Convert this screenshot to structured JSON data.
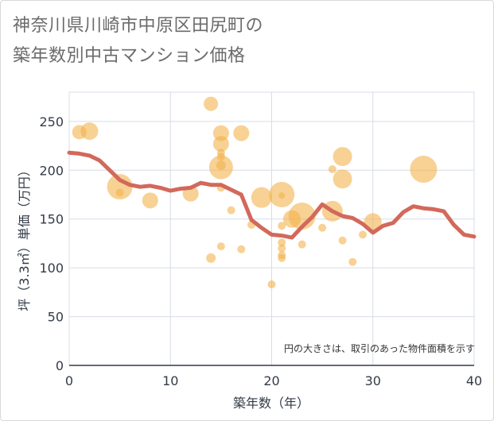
{
  "title_line1": "神奈川県川崎市中原区田尻町の",
  "title_line2": "築年数別中古マンション価格",
  "chart_data": {
    "type": "scatter",
    "xlabel": "築年数（年）",
    "ylabel": "坪（3.3㎡）単価（万円）",
    "xlim": [
      0,
      40
    ],
    "ylim": [
      0,
      280
    ],
    "xticks": [
      0,
      10,
      20,
      30,
      40
    ],
    "yticks": [
      0,
      50,
      100,
      150,
      200,
      250
    ],
    "grid": true,
    "note": "円の大きさは、取引のあった物件面積を示す",
    "colors": {
      "bubble": "#f3b34d",
      "line": "#d2695a",
      "grid": "#d7dde5",
      "axis": "#333b47"
    },
    "scatter_points": [
      {
        "x": 1,
        "y": 239,
        "s": 9
      },
      {
        "x": 2,
        "y": 240,
        "s": 11
      },
      {
        "x": 5,
        "y": 183,
        "s": 16
      },
      {
        "x": 5,
        "y": 177,
        "s": 5
      },
      {
        "x": 8,
        "y": 169,
        "s": 10
      },
      {
        "x": 12,
        "y": 176,
        "s": 10
      },
      {
        "x": 14,
        "y": 268,
        "s": 9
      },
      {
        "x": 14,
        "y": 110,
        "s": 6
      },
      {
        "x": 15,
        "y": 238,
        "s": 10
      },
      {
        "x": 15,
        "y": 227,
        "s": 10
      },
      {
        "x": 15,
        "y": 218,
        "s": 5
      },
      {
        "x": 15,
        "y": 214,
        "s": 5
      },
      {
        "x": 15,
        "y": 205,
        "s": 6
      },
      {
        "x": 15,
        "y": 203,
        "s": 15
      },
      {
        "x": 15,
        "y": 182,
        "s": 5
      },
      {
        "x": 15,
        "y": 122,
        "s": 5
      },
      {
        "x": 16,
        "y": 159,
        "s": 5
      },
      {
        "x": 17,
        "y": 238,
        "s": 10
      },
      {
        "x": 17,
        "y": 119,
        "s": 5
      },
      {
        "x": 18,
        "y": 144,
        "s": 5
      },
      {
        "x": 19,
        "y": 172,
        "s": 13
      },
      {
        "x": 20,
        "y": 83,
        "s": 5
      },
      {
        "x": 21,
        "y": 175,
        "s": 16
      },
      {
        "x": 21,
        "y": 174,
        "s": 4
      },
      {
        "x": 21,
        "y": 143,
        "s": 5
      },
      {
        "x": 21,
        "y": 126,
        "s": 5
      },
      {
        "x": 21,
        "y": 120,
        "s": 5
      },
      {
        "x": 21,
        "y": 113,
        "s": 5
      },
      {
        "x": 21,
        "y": 110,
        "s": 5
      },
      {
        "x": 22,
        "y": 150,
        "s": 11
      },
      {
        "x": 23,
        "y": 153,
        "s": 17
      },
      {
        "x": 23,
        "y": 124,
        "s": 5
      },
      {
        "x": 25,
        "y": 141,
        "s": 5
      },
      {
        "x": 26,
        "y": 201,
        "s": 5
      },
      {
        "x": 26,
        "y": 158,
        "s": 13
      },
      {
        "x": 27,
        "y": 214,
        "s": 12
      },
      {
        "x": 27,
        "y": 191,
        "s": 12
      },
      {
        "x": 27,
        "y": 128,
        "s": 5
      },
      {
        "x": 28,
        "y": 106,
        "s": 5
      },
      {
        "x": 29,
        "y": 134,
        "s": 5
      },
      {
        "x": 30,
        "y": 147,
        "s": 11
      },
      {
        "x": 35,
        "y": 201,
        "s": 17
      }
    ],
    "trend_line": {
      "x": [
        0,
        1,
        2,
        3,
        4,
        5,
        6,
        7,
        8,
        9,
        10,
        11,
        12,
        13,
        14,
        15,
        16,
        17,
        18,
        19,
        20,
        21,
        22,
        23,
        24,
        25,
        26,
        27,
        28,
        29,
        30,
        31,
        32,
        33,
        34,
        35,
        36,
        37,
        38,
        39,
        40
      ],
      "y": [
        218,
        217,
        215,
        210,
        200,
        190,
        185,
        183,
        184,
        182,
        179,
        181,
        182,
        187,
        185,
        185,
        180,
        175,
        149,
        141,
        134,
        133,
        131,
        142,
        152,
        165,
        158,
        153,
        151,
        145,
        136,
        143,
        146,
        157,
        163,
        161,
        160,
        158,
        144,
        134,
        132
      ]
    }
  }
}
